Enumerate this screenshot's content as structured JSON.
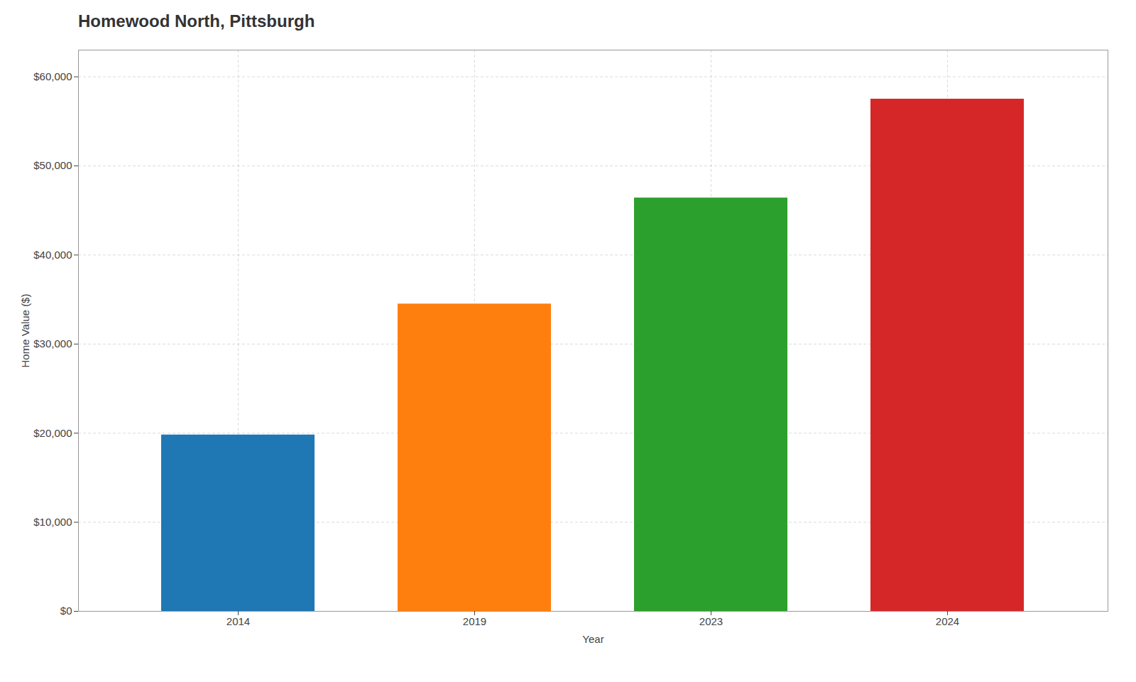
{
  "chart_data": {
    "type": "bar",
    "title": "Homewood North, Pittsburgh",
    "xlabel": "Year",
    "ylabel": "Home Value ($)",
    "categories": [
      "2014",
      "2019",
      "2023",
      "2024"
    ],
    "values": [
      19800,
      34500,
      46400,
      57500
    ],
    "colors": [
      "#1f77b4",
      "#ff7f0e",
      "#2ca02c",
      "#d62728"
    ],
    "ylim": [
      0,
      63000
    ],
    "yticks": [
      {
        "value": 0,
        "label": "$0"
      },
      {
        "value": 10000,
        "label": "$10,000"
      },
      {
        "value": 20000,
        "label": "$20,000"
      },
      {
        "value": 30000,
        "label": "$30,000"
      },
      {
        "value": 40000,
        "label": "$40,000"
      },
      {
        "value": 50000,
        "label": "$50,000"
      },
      {
        "value": 60000,
        "label": "$60,000"
      }
    ],
    "grid": true
  }
}
